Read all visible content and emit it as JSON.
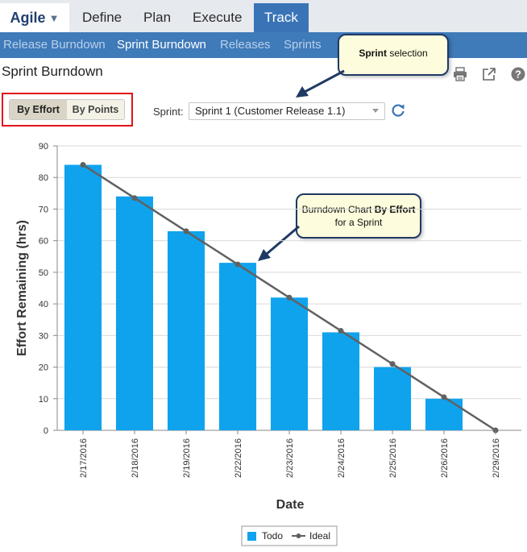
{
  "nav": {
    "brand": "Agile",
    "items": [
      {
        "label": "Define",
        "active": false
      },
      {
        "label": "Plan",
        "active": false
      },
      {
        "label": "Execute",
        "active": false
      },
      {
        "label": "Track",
        "active": true
      }
    ]
  },
  "subnav": {
    "items": [
      {
        "label": "Release Burndown",
        "active": false
      },
      {
        "label": "Sprint Burndown",
        "active": true
      },
      {
        "label": "Releases",
        "active": false
      },
      {
        "label": "Sprints",
        "active": false
      }
    ]
  },
  "page": {
    "title": "Sprint Burndown",
    "tools": [
      "print-icon",
      "popout-icon",
      "help-icon"
    ]
  },
  "toggle": {
    "by_effort": "By Effort",
    "by_points": "By Points",
    "selected": "By Effort"
  },
  "sprint": {
    "label": "Sprint:",
    "value": "Sprint 1 (Customer Release 1.1)"
  },
  "callouts": {
    "sprint_selection": {
      "bold": "Sprint",
      "rest": " selection"
    },
    "burndown": {
      "line1": "Burndown Chart ",
      "bold": "By Effort",
      "line2": " for a Sprint"
    }
  },
  "colors": {
    "bar": "#0fa3ee",
    "ideal": "#616161",
    "nav_active": "#3a74b7",
    "subnav": "#3f7ab9",
    "highlight": "#e0141b"
  },
  "chart_data": {
    "type": "bar",
    "categories": [
      "2/17/2016",
      "2/18/2016",
      "2/19/2016",
      "2/22/2016",
      "2/23/2016",
      "2/24/2016",
      "2/25/2016",
      "2/26/2016",
      "2/29/2016"
    ],
    "series": [
      {
        "name": "Todo",
        "kind": "bar",
        "color": "#0fa3ee",
        "values": [
          84,
          74,
          63,
          53,
          42,
          31,
          20,
          10,
          null
        ]
      },
      {
        "name": "Ideal",
        "kind": "line",
        "color": "#616161",
        "values": [
          84,
          73.5,
          63,
          52.5,
          42,
          31.5,
          21,
          10.5,
          0
        ]
      }
    ],
    "xlabel": "Date",
    "ylabel": "Effort Remaining (hrs)",
    "ylim": [
      0,
      90
    ],
    "yticks": [
      0,
      10,
      20,
      30,
      40,
      50,
      60,
      70,
      80,
      90
    ],
    "grid": true,
    "legend": "bottom"
  }
}
